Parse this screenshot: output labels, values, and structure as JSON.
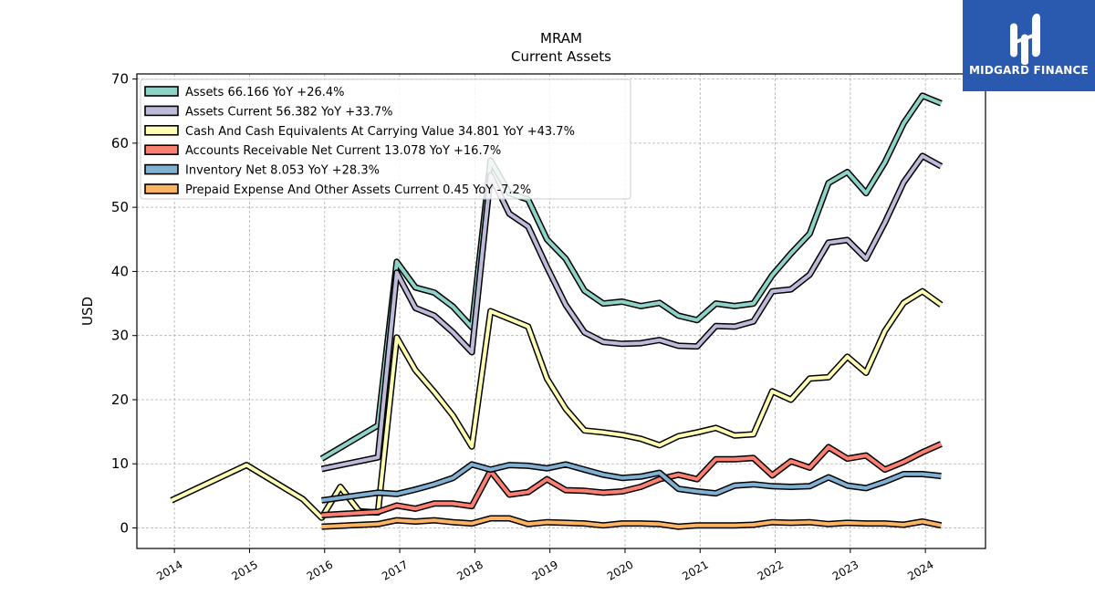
{
  "brand": {
    "name": "MIDGARD FINANCE",
    "bg_color": "#2a59b0",
    "icon": "midgard-logo-icon"
  },
  "chart_data": {
    "type": "line",
    "title": "MRAM",
    "subtitle": "Current  Assets",
    "xlabel": "",
    "ylabel": "USD",
    "xlim": [
      2013.5,
      2024.8
    ],
    "ylim": [
      -3.2,
      70.8
    ],
    "x_ticks": [
      2014,
      2015,
      2016,
      2017,
      2018,
      2019,
      2020,
      2021,
      2022,
      2023,
      2024
    ],
    "y_ticks": [
      0,
      10,
      20,
      30,
      40,
      50,
      60,
      70
    ],
    "grid": true,
    "legend_position": "top-left",
    "series": [
      {
        "name": "Assets  66.166 YoY +26.4%",
        "color": "#8dd3c7",
        "points": [
          [
            2015.96,
            10.8
          ],
          [
            2016.71,
            16.0
          ],
          [
            2016.96,
            41.5
          ],
          [
            2017.21,
            37.5
          ],
          [
            2017.46,
            36.7
          ],
          [
            2017.71,
            34.5
          ],
          [
            2017.96,
            31.3
          ],
          [
            2018.21,
            57.3
          ],
          [
            2018.46,
            52.2
          ],
          [
            2018.71,
            51.2
          ],
          [
            2018.96,
            45.0
          ],
          [
            2019.21,
            42.0
          ],
          [
            2019.46,
            37.0
          ],
          [
            2019.71,
            35.0
          ],
          [
            2019.96,
            35.3
          ],
          [
            2020.21,
            34.6
          ],
          [
            2020.46,
            35.1
          ],
          [
            2020.71,
            33.1
          ],
          [
            2020.96,
            32.4
          ],
          [
            2021.21,
            35.0
          ],
          [
            2021.46,
            34.6
          ],
          [
            2021.71,
            35.0
          ],
          [
            2021.96,
            39.4
          ],
          [
            2022.21,
            42.8
          ],
          [
            2022.46,
            45.9
          ],
          [
            2022.71,
            53.8
          ],
          [
            2022.96,
            55.5
          ],
          [
            2023.21,
            52.2
          ],
          [
            2023.46,
            57.0
          ],
          [
            2023.71,
            63.1
          ],
          [
            2023.96,
            67.4
          ],
          [
            2024.21,
            66.2
          ]
        ]
      },
      {
        "name": "Assets Current  56.382 YoY +33.7%",
        "color": "#bebada",
        "points": [
          [
            2015.96,
            9.2
          ],
          [
            2016.71,
            11.0
          ],
          [
            2016.96,
            39.8
          ],
          [
            2017.21,
            34.3
          ],
          [
            2017.46,
            33.1
          ],
          [
            2017.71,
            30.5
          ],
          [
            2017.96,
            27.4
          ],
          [
            2018.21,
            55.0
          ],
          [
            2018.46,
            49.0
          ],
          [
            2018.71,
            47.0
          ],
          [
            2018.96,
            40.7
          ],
          [
            2019.21,
            34.8
          ],
          [
            2019.46,
            30.5
          ],
          [
            2019.71,
            29.0
          ],
          [
            2019.96,
            28.7
          ],
          [
            2020.21,
            28.8
          ],
          [
            2020.46,
            29.3
          ],
          [
            2020.71,
            28.4
          ],
          [
            2020.96,
            28.3
          ],
          [
            2021.21,
            31.5
          ],
          [
            2021.46,
            31.4
          ],
          [
            2021.71,
            32.2
          ],
          [
            2021.96,
            36.9
          ],
          [
            2022.21,
            37.2
          ],
          [
            2022.46,
            39.5
          ],
          [
            2022.71,
            44.5
          ],
          [
            2022.96,
            44.9
          ],
          [
            2023.21,
            42.0
          ],
          [
            2023.46,
            47.6
          ],
          [
            2023.71,
            53.9
          ],
          [
            2023.96,
            58.0
          ],
          [
            2024.21,
            56.4
          ]
        ]
      },
      {
        "name": "Cash And Cash Equivalents At Carrying Value  34.801 YoY +43.7%",
        "color": "#ffffb3",
        "points": [
          [
            2013.96,
            4.3
          ],
          [
            2014.96,
            9.8
          ],
          [
            2015.71,
            4.5
          ],
          [
            2015.96,
            1.6
          ],
          [
            2016.21,
            6.4
          ],
          [
            2016.46,
            2.6
          ],
          [
            2016.71,
            2.4
          ],
          [
            2016.96,
            29.7
          ],
          [
            2017.21,
            24.6
          ],
          [
            2017.46,
            21.2
          ],
          [
            2017.71,
            17.5
          ],
          [
            2017.96,
            12.7
          ],
          [
            2018.21,
            33.8
          ],
          [
            2018.46,
            32.6
          ],
          [
            2018.71,
            31.4
          ],
          [
            2018.96,
            23.3
          ],
          [
            2019.21,
            18.6
          ],
          [
            2019.46,
            15.2
          ],
          [
            2019.71,
            14.9
          ],
          [
            2019.96,
            14.5
          ],
          [
            2020.21,
            13.9
          ],
          [
            2020.46,
            12.9
          ],
          [
            2020.71,
            14.3
          ],
          [
            2020.96,
            14.9
          ],
          [
            2021.21,
            15.6
          ],
          [
            2021.46,
            14.4
          ],
          [
            2021.71,
            14.6
          ],
          [
            2021.96,
            21.3
          ],
          [
            2022.21,
            20.0
          ],
          [
            2022.46,
            23.3
          ],
          [
            2022.71,
            23.5
          ],
          [
            2022.96,
            26.7
          ],
          [
            2023.21,
            24.2
          ],
          [
            2023.46,
            30.7
          ],
          [
            2023.71,
            35.1
          ],
          [
            2023.96,
            36.9
          ],
          [
            2024.21,
            34.8
          ]
        ]
      },
      {
        "name": "Accounts Receivable Net Current  13.078 YoY +16.7%",
        "color": "#fb8072",
        "points": [
          [
            2015.96,
            2.0
          ],
          [
            2016.71,
            2.5
          ],
          [
            2016.96,
            3.5
          ],
          [
            2017.21,
            3.0
          ],
          [
            2017.46,
            3.8
          ],
          [
            2017.71,
            3.8
          ],
          [
            2017.96,
            3.4
          ],
          [
            2018.21,
            8.9
          ],
          [
            2018.46,
            5.2
          ],
          [
            2018.71,
            5.6
          ],
          [
            2018.96,
            7.6
          ],
          [
            2019.21,
            5.9
          ],
          [
            2019.46,
            5.8
          ],
          [
            2019.71,
            5.5
          ],
          [
            2019.96,
            5.7
          ],
          [
            2020.21,
            6.4
          ],
          [
            2020.46,
            7.6
          ],
          [
            2020.71,
            8.3
          ],
          [
            2020.96,
            7.6
          ],
          [
            2021.21,
            10.7
          ],
          [
            2021.46,
            10.7
          ],
          [
            2021.71,
            10.9
          ],
          [
            2021.96,
            8.2
          ],
          [
            2022.21,
            10.4
          ],
          [
            2022.46,
            9.4
          ],
          [
            2022.71,
            12.6
          ],
          [
            2022.96,
            10.8
          ],
          [
            2023.21,
            11.3
          ],
          [
            2023.46,
            9.1
          ],
          [
            2023.71,
            10.3
          ],
          [
            2023.96,
            11.8
          ],
          [
            2024.21,
            13.1
          ]
        ]
      },
      {
        "name": "Inventory Net  8.053 YoY +28.3%",
        "color": "#80b1d3",
        "points": [
          [
            2015.96,
            4.3
          ],
          [
            2016.71,
            5.5
          ],
          [
            2016.96,
            5.3
          ],
          [
            2017.21,
            6.0
          ],
          [
            2017.46,
            6.8
          ],
          [
            2017.71,
            7.8
          ],
          [
            2017.96,
            9.9
          ],
          [
            2018.21,
            9.1
          ],
          [
            2018.46,
            9.8
          ],
          [
            2018.71,
            9.7
          ],
          [
            2018.96,
            9.3
          ],
          [
            2019.21,
            9.9
          ],
          [
            2019.46,
            9.1
          ],
          [
            2019.71,
            8.3
          ],
          [
            2019.96,
            7.8
          ],
          [
            2020.21,
            8.0
          ],
          [
            2020.46,
            8.6
          ],
          [
            2020.71,
            6.1
          ],
          [
            2020.96,
            5.7
          ],
          [
            2021.21,
            5.4
          ],
          [
            2021.46,
            6.6
          ],
          [
            2021.71,
            6.8
          ],
          [
            2021.96,
            6.5
          ],
          [
            2022.21,
            6.4
          ],
          [
            2022.46,
            6.5
          ],
          [
            2022.71,
            7.9
          ],
          [
            2022.96,
            6.6
          ],
          [
            2023.21,
            6.2
          ],
          [
            2023.46,
            7.2
          ],
          [
            2023.71,
            8.4
          ],
          [
            2023.96,
            8.4
          ],
          [
            2024.21,
            8.1
          ]
        ]
      },
      {
        "name": "Prepaid Expense And Other Assets Current  0.45 YoY -7.2%",
        "color": "#fdb462",
        "points": [
          [
            2015.96,
            0.2
          ],
          [
            2016.71,
            0.6
          ],
          [
            2016.96,
            1.2
          ],
          [
            2017.21,
            1.0
          ],
          [
            2017.46,
            1.2
          ],
          [
            2017.71,
            0.9
          ],
          [
            2017.96,
            0.7
          ],
          [
            2018.21,
            1.5
          ],
          [
            2018.46,
            1.5
          ],
          [
            2018.71,
            0.6
          ],
          [
            2018.96,
            0.9
          ],
          [
            2019.21,
            0.8
          ],
          [
            2019.46,
            0.7
          ],
          [
            2019.71,
            0.4
          ],
          [
            2019.96,
            0.7
          ],
          [
            2020.21,
            0.7
          ],
          [
            2020.46,
            0.6
          ],
          [
            2020.71,
            0.2
          ],
          [
            2020.96,
            0.4
          ],
          [
            2021.21,
            0.4
          ],
          [
            2021.46,
            0.4
          ],
          [
            2021.71,
            0.5
          ],
          [
            2021.96,
            0.9
          ],
          [
            2022.21,
            0.8
          ],
          [
            2022.46,
            0.9
          ],
          [
            2022.71,
            0.6
          ],
          [
            2022.96,
            0.8
          ],
          [
            2023.21,
            0.7
          ],
          [
            2023.46,
            0.7
          ],
          [
            2023.71,
            0.5
          ],
          [
            2023.96,
            1.0
          ],
          [
            2024.21,
            0.4
          ]
        ]
      }
    ]
  }
}
